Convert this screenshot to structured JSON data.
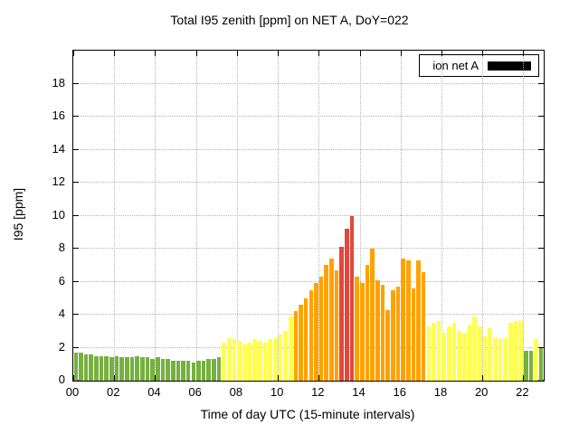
{
  "chart_data": {
    "type": "bar",
    "title": "Total I95 zenith [ppm] on NET A, DoY=022",
    "xlabel": "Time of day UTC (15-minute intervals)",
    "ylabel": "I95 [ppm]",
    "xlim": [
      0,
      23
    ],
    "ylim": [
      0,
      20
    ],
    "interval_minutes": 15,
    "grid": true,
    "x_ticks": [
      "00",
      "02",
      "04",
      "06",
      "08",
      "10",
      "12",
      "14",
      "16",
      "18",
      "20",
      "22"
    ],
    "x_tick_hours": [
      0,
      2,
      4,
      6,
      8,
      10,
      12,
      14,
      16,
      18,
      20,
      22
    ],
    "y_ticks": [
      0,
      2,
      4,
      6,
      8,
      10,
      12,
      14,
      16,
      18
    ],
    "legend": {
      "label": "ion net A",
      "swatch_color": "#000000",
      "position": "top-right"
    },
    "colors": {
      "g": "#76b041",
      "y": "#ffff4f",
      "o": "#ffa200",
      "r": "#e1473d"
    },
    "bars": [
      [
        "00:00",
        1.7,
        "g"
      ],
      [
        "00:15",
        1.7,
        "g"
      ],
      [
        "00:30",
        1.6,
        "g"
      ],
      [
        "00:45",
        1.6,
        "g"
      ],
      [
        "01:00",
        1.5,
        "g"
      ],
      [
        "01:15",
        1.5,
        "g"
      ],
      [
        "01:30",
        1.5,
        "g"
      ],
      [
        "01:45",
        1.4,
        "g"
      ],
      [
        "02:00",
        1.5,
        "g"
      ],
      [
        "02:15",
        1.4,
        "g"
      ],
      [
        "02:30",
        1.4,
        "g"
      ],
      [
        "02:45",
        1.4,
        "g"
      ],
      [
        "03:00",
        1.5,
        "g"
      ],
      [
        "03:15",
        1.4,
        "g"
      ],
      [
        "03:30",
        1.4,
        "g"
      ],
      [
        "03:45",
        1.3,
        "g"
      ],
      [
        "04:00",
        1.4,
        "g"
      ],
      [
        "04:15",
        1.3,
        "g"
      ],
      [
        "04:30",
        1.3,
        "g"
      ],
      [
        "04:45",
        1.2,
        "g"
      ],
      [
        "05:00",
        1.2,
        "g"
      ],
      [
        "05:15",
        1.2,
        "g"
      ],
      [
        "05:30",
        1.2,
        "g"
      ],
      [
        "05:45",
        1.1,
        "g"
      ],
      [
        "06:00",
        1.2,
        "g"
      ],
      [
        "06:15",
        1.2,
        "g"
      ],
      [
        "06:30",
        1.3,
        "g"
      ],
      [
        "06:45",
        1.3,
        "g"
      ],
      [
        "07:00",
        1.4,
        "g"
      ],
      [
        "07:15",
        2.3,
        "y"
      ],
      [
        "07:30",
        2.6,
        "y"
      ],
      [
        "07:45",
        2.5,
        "y"
      ],
      [
        "08:00",
        2.4,
        "y"
      ],
      [
        "08:15",
        2.2,
        "y"
      ],
      [
        "08:30",
        2.3,
        "y"
      ],
      [
        "08:45",
        2.5,
        "y"
      ],
      [
        "09:00",
        2.4,
        "y"
      ],
      [
        "09:15",
        2.3,
        "y"
      ],
      [
        "09:30",
        2.5,
        "y"
      ],
      [
        "09:45",
        2.6,
        "y"
      ],
      [
        "10:00",
        2.8,
        "y"
      ],
      [
        "10:15",
        3.0,
        "y"
      ],
      [
        "10:30",
        3.9,
        "y"
      ],
      [
        "10:45",
        4.2,
        "o"
      ],
      [
        "11:00",
        4.6,
        "o"
      ],
      [
        "11:15",
        5.0,
        "o"
      ],
      [
        "11:30",
        5.5,
        "o"
      ],
      [
        "11:45",
        5.9,
        "o"
      ],
      [
        "12:00",
        6.3,
        "o"
      ],
      [
        "12:15",
        7.0,
        "o"
      ],
      [
        "12:30",
        7.4,
        "o"
      ],
      [
        "12:45",
        6.7,
        "o"
      ],
      [
        "13:00",
        8.1,
        "r"
      ],
      [
        "13:15",
        9.2,
        "r"
      ],
      [
        "13:30",
        10.0,
        "r"
      ],
      [
        "13:45",
        6.3,
        "o"
      ],
      [
        "14:00",
        5.9,
        "o"
      ],
      [
        "14:15",
        7.0,
        "o"
      ],
      [
        "14:30",
        8.0,
        "o"
      ],
      [
        "14:45",
        6.1,
        "o"
      ],
      [
        "15:00",
        5.8,
        "o"
      ],
      [
        "15:15",
        4.3,
        "o"
      ],
      [
        "15:30",
        5.5,
        "o"
      ],
      [
        "15:45",
        5.7,
        "o"
      ],
      [
        "16:00",
        7.4,
        "o"
      ],
      [
        "16:15",
        7.3,
        "o"
      ],
      [
        "16:30",
        5.6,
        "o"
      ],
      [
        "16:45",
        7.3,
        "o"
      ],
      [
        "17:00",
        6.6,
        "o"
      ],
      [
        "17:15",
        3.3,
        "y"
      ],
      [
        "17:30",
        3.5,
        "y"
      ],
      [
        "17:45",
        3.6,
        "y"
      ],
      [
        "18:00",
        2.9,
        "y"
      ],
      [
        "18:15",
        3.3,
        "y"
      ],
      [
        "18:30",
        3.5,
        "y"
      ],
      [
        "18:45",
        3.0,
        "y"
      ],
      [
        "19:00",
        2.9,
        "y"
      ],
      [
        "19:15",
        3.4,
        "y"
      ],
      [
        "19:30",
        3.9,
        "y"
      ],
      [
        "19:45",
        3.3,
        "y"
      ],
      [
        "20:00",
        2.7,
        "y"
      ],
      [
        "20:15",
        3.2,
        "y"
      ],
      [
        "20:30",
        2.6,
        "y"
      ],
      [
        "20:45",
        2.5,
        "y"
      ],
      [
        "21:00",
        2.6,
        "y"
      ],
      [
        "21:15",
        3.5,
        "y"
      ],
      [
        "21:30",
        3.6,
        "y"
      ],
      [
        "21:45",
        3.6,
        "y"
      ],
      [
        "22:00",
        1.8,
        "g"
      ],
      [
        "22:15",
        1.8,
        "g"
      ],
      [
        "22:30",
        2.5,
        "y"
      ],
      [
        "22:45",
        2.0,
        "g"
      ]
    ]
  }
}
